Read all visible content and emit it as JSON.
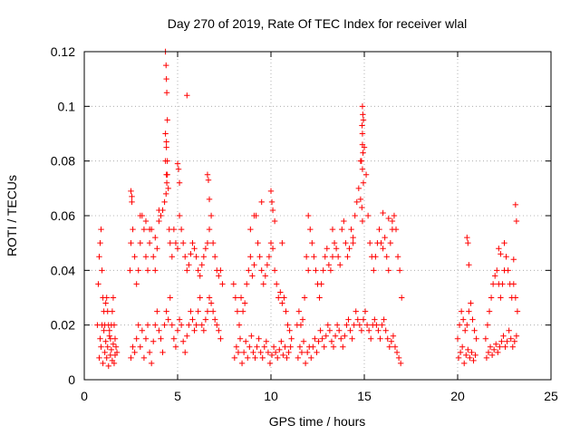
{
  "chart_data": {
    "type": "scatter",
    "title": "Day 270 of 2019, Rate Of TEC Index for receiver wlal",
    "xlabel": "GPS time / hours",
    "ylabel": "ROTI / TECUs",
    "xlim": [
      0,
      25
    ],
    "ylim": [
      0,
      0.12
    ],
    "x_ticks": [
      0,
      5,
      10,
      15,
      20,
      25
    ],
    "x_tick_labels": [
      "0",
      "5",
      "10",
      "15",
      "20",
      "25"
    ],
    "y_ticks": [
      0,
      0.02,
      0.04,
      0.06,
      0.08,
      0.1,
      0.12
    ],
    "y_tick_labels": [
      "0",
      "0.02",
      "0.04",
      "0.06",
      "0.08",
      "0.1",
      "0.12"
    ],
    "grid": true,
    "marker": "+",
    "color": "#ff0000",
    "series": [
      {
        "name": "ROTI",
        "x": [
          0.7,
          0.75,
          0.8,
          0.85,
          0.9,
          0.95,
          1.0,
          1.05,
          1.1,
          1.15,
          1.2,
          1.25,
          1.3,
          1.35,
          1.4,
          1.45,
          1.5,
          1.55,
          1.6,
          1.65,
          1.7,
          1.75,
          0.8,
          0.9,
          1.0,
          1.1,
          1.2,
          1.3,
          1.4,
          1.5,
          1.6,
          0.85,
          0.95,
          1.05,
          1.15,
          1.25,
          1.35,
          1.45,
          1.55,
          1.65,
          2.45,
          2.5,
          2.55,
          2.6,
          2.7,
          2.8,
          2.9,
          3.0,
          3.1,
          3.2,
          3.3,
          3.4,
          3.5,
          3.6,
          3.7,
          3.8,
          3.9,
          4.0,
          4.1,
          4.2,
          4.3,
          4.35,
          4.4,
          4.45,
          4.5,
          4.55,
          4.6,
          4.7,
          4.8,
          4.9,
          5.0,
          5.1,
          5.2,
          5.3,
          5.4,
          5.5,
          5.6,
          5.7,
          5.8,
          5.9,
          6.0,
          6.1,
          6.2,
          6.3,
          6.4,
          6.5,
          6.6,
          6.7,
          6.8,
          6.9,
          7.0,
          7.1,
          7.2,
          7.3,
          7.4,
          2.5,
          2.6,
          2.7,
          2.8,
          2.9,
          3.0,
          3.1,
          3.2,
          3.3,
          3.4,
          3.5,
          3.6,
          3.7,
          3.8,
          3.9,
          4.0,
          4.1,
          4.2,
          4.3,
          4.4,
          4.5,
          4.6,
          4.7,
          4.8,
          4.9,
          5.0,
          5.1,
          5.2,
          5.3,
          5.4,
          5.5,
          5.6,
          5.7,
          5.8,
          5.9,
          6.0,
          6.1,
          6.2,
          6.3,
          6.4,
          6.5,
          6.6,
          6.7,
          6.8,
          6.9,
          7.0,
          7.1,
          7.2,
          7.3,
          4.35,
          4.38,
          4.4,
          4.42,
          4.45,
          4.35,
          4.4,
          4.45,
          4.4,
          4.42,
          4.38,
          5.0,
          5.05,
          5.1,
          5.5,
          6.6,
          6.65,
          6.7,
          2.5,
          2.55,
          3.0,
          3.3,
          3.5,
          3.8,
          4.0,
          8.0,
          8.1,
          8.2,
          8.3,
          8.4,
          8.5,
          8.6,
          8.7,
          8.8,
          8.9,
          9.0,
          9.1,
          9.2,
          9.3,
          9.4,
          9.5,
          9.6,
          9.7,
          9.8,
          9.9,
          10.0,
          10.1,
          10.2,
          10.3,
          10.4,
          10.5,
          10.6,
          10.7,
          10.8,
          10.9,
          11.0,
          11.1,
          8.05,
          8.15,
          8.25,
          8.35,
          8.45,
          8.55,
          8.65,
          8.75,
          8.85,
          8.95,
          9.05,
          9.15,
          9.25,
          9.35,
          9.45,
          9.55,
          9.65,
          9.75,
          9.85,
          9.95,
          10.05,
          10.15,
          10.25,
          10.35,
          10.45,
          10.55,
          10.65,
          10.75,
          10.85,
          10.95,
          11.05,
          10.0,
          10.05,
          10.1,
          10.2,
          9.1,
          9.5,
          8.9,
          10.6,
          11.4,
          11.5,
          11.6,
          11.7,
          11.8,
          11.9,
          12.0,
          12.1,
          12.2,
          12.3,
          12.4,
          12.5,
          12.6,
          12.7,
          12.8,
          12.9,
          13.0,
          13.1,
          13.2,
          13.3,
          13.4,
          13.5,
          13.6,
          13.7,
          13.8,
          13.9,
          14.0,
          14.1,
          14.2,
          14.3,
          14.4,
          14.5,
          14.6,
          14.7,
          14.8,
          14.9,
          15.0,
          15.1,
          15.2,
          15.3,
          15.4,
          15.5,
          15.6,
          15.7,
          15.8,
          15.9,
          16.0,
          16.1,
          16.2,
          16.3,
          16.4,
          16.5,
          16.6,
          16.7,
          16.8,
          16.9,
          17.0,
          11.45,
          11.55,
          11.65,
          11.75,
          11.85,
          11.95,
          12.05,
          12.15,
          12.25,
          12.35,
          12.45,
          12.55,
          12.65,
          12.75,
          12.85,
          12.95,
          13.05,
          13.15,
          13.25,
          13.35,
          13.45,
          13.55,
          13.65,
          13.75,
          13.85,
          13.95,
          14.05,
          14.15,
          14.25,
          14.35,
          14.45,
          14.55,
          14.65,
          14.75,
          14.85,
          14.95,
          15.05,
          15.15,
          15.25,
          15.35,
          15.45,
          15.55,
          15.65,
          15.75,
          15.85,
          15.95,
          16.05,
          16.15,
          16.25,
          16.35,
          16.45,
          16.55,
          16.65,
          16.75,
          16.85,
          16.95,
          14.9,
          14.92,
          14.95,
          14.88,
          14.9,
          14.93,
          14.85,
          14.9,
          14.95,
          14.8,
          14.87,
          14.9,
          12.0,
          13.3,
          16.0,
          16.3,
          16.5,
          14.4,
          20.0,
          20.1,
          20.2,
          20.3,
          20.4,
          20.5,
          20.6,
          20.7,
          20.8,
          20.9,
          21.0,
          20.05,
          20.15,
          20.25,
          20.35,
          20.45,
          20.55,
          20.65,
          20.75,
          20.85,
          20.95,
          20.5,
          20.55,
          20.6,
          21.5,
          21.6,
          21.7,
          21.8,
          21.9,
          22.0,
          22.1,
          22.2,
          22.3,
          22.4,
          22.5,
          22.6,
          22.7,
          22.8,
          22.9,
          23.0,
          23.1,
          23.2,
          21.55,
          21.65,
          21.75,
          21.85,
          21.95,
          22.05,
          22.15,
          22.25,
          22.35,
          22.45,
          22.55,
          22.65,
          22.75,
          22.85,
          22.95,
          23.05,
          23.15,
          22.2,
          22.3,
          22.5,
          23.0,
          23.1,
          23.15
        ],
        "y": [
          0.02,
          0.035,
          0.045,
          0.05,
          0.055,
          0.04,
          0.03,
          0.025,
          0.02,
          0.028,
          0.03,
          0.025,
          0.02,
          0.018,
          0.015,
          0.02,
          0.025,
          0.03,
          0.02,
          0.015,
          0.012,
          0.01,
          0.008,
          0.012,
          0.006,
          0.01,
          0.008,
          0.005,
          0.009,
          0.007,
          0.006,
          0.015,
          0.02,
          0.018,
          0.014,
          0.012,
          0.016,
          0.011,
          0.013,
          0.009,
          0.04,
          0.05,
          0.065,
          0.055,
          0.045,
          0.035,
          0.04,
          0.05,
          0.06,
          0.055,
          0.045,
          0.04,
          0.05,
          0.055,
          0.045,
          0.04,
          0.048,
          0.058,
          0.06,
          0.062,
          0.065,
          0.08,
          0.085,
          0.075,
          0.07,
          0.055,
          0.05,
          0.045,
          0.055,
          0.05,
          0.048,
          0.06,
          0.055,
          0.05,
          0.045,
          0.04,
          0.042,
          0.046,
          0.05,
          0.048,
          0.045,
          0.04,
          0.038,
          0.042,
          0.045,
          0.048,
          0.05,
          0.055,
          0.06,
          0.05,
          0.045,
          0.04,
          0.038,
          0.04,
          0.035,
          0.008,
          0.012,
          0.01,
          0.015,
          0.02,
          0.012,
          0.018,
          0.008,
          0.015,
          0.02,
          0.01,
          0.006,
          0.014,
          0.02,
          0.025,
          0.018,
          0.015,
          0.01,
          0.02,
          0.025,
          0.022,
          0.03,
          0.02,
          0.015,
          0.012,
          0.018,
          0.022,
          0.02,
          0.014,
          0.01,
          0.016,
          0.02,
          0.025,
          0.022,
          0.018,
          0.02,
          0.025,
          0.03,
          0.02,
          0.018,
          0.022,
          0.025,
          0.03,
          0.028,
          0.025,
          0.022,
          0.02,
          0.018,
          0.015,
          0.12,
          0.115,
          0.11,
          0.105,
          0.095,
          0.09,
          0.087,
          0.08,
          0.075,
          0.072,
          0.068,
          0.079,
          0.077,
          0.072,
          0.104,
          0.075,
          0.073,
          0.066,
          0.069,
          0.067,
          0.06,
          0.058,
          0.055,
          0.052,
          0.062,
          0.035,
          0.03,
          0.025,
          0.02,
          0.03,
          0.025,
          0.028,
          0.035,
          0.04,
          0.045,
          0.038,
          0.042,
          0.06,
          0.05,
          0.045,
          0.04,
          0.035,
          0.038,
          0.042,
          0.045,
          0.05,
          0.048,
          0.04,
          0.035,
          0.03,
          0.032,
          0.028,
          0.03,
          0.025,
          0.02,
          0.018,
          0.015,
          0.008,
          0.012,
          0.01,
          0.015,
          0.006,
          0.01,
          0.014,
          0.008,
          0.012,
          0.016,
          0.01,
          0.008,
          0.012,
          0.015,
          0.01,
          0.008,
          0.012,
          0.014,
          0.01,
          0.006,
          0.009,
          0.012,
          0.01,
          0.008,
          0.011,
          0.014,
          0.009,
          0.012,
          0.008,
          0.01,
          0.012,
          0.069,
          0.065,
          0.062,
          0.058,
          0.06,
          0.065,
          0.055,
          0.05,
          0.02,
          0.025,
          0.02,
          0.022,
          0.03,
          0.045,
          0.04,
          0.055,
          0.05,
          0.045,
          0.04,
          0.035,
          0.03,
          0.035,
          0.04,
          0.045,
          0.048,
          0.042,
          0.04,
          0.045,
          0.05,
          0.048,
          0.045,
          0.042,
          0.055,
          0.058,
          0.05,
          0.045,
          0.048,
          0.055,
          0.05,
          0.06,
          0.065,
          0.07,
          0.08,
          0.09,
          0.085,
          0.075,
          0.06,
          0.05,
          0.045,
          0.04,
          0.045,
          0.05,
          0.055,
          0.05,
          0.048,
          0.052,
          0.045,
          0.04,
          0.05,
          0.058,
          0.06,
          0.055,
          0.045,
          0.04,
          0.03,
          0.008,
          0.012,
          0.01,
          0.014,
          0.006,
          0.01,
          0.012,
          0.008,
          0.012,
          0.015,
          0.01,
          0.014,
          0.018,
          0.015,
          0.012,
          0.016,
          0.02,
          0.018,
          0.014,
          0.012,
          0.016,
          0.02,
          0.018,
          0.015,
          0.012,
          0.016,
          0.02,
          0.022,
          0.018,
          0.015,
          0.02,
          0.025,
          0.022,
          0.02,
          0.018,
          0.022,
          0.025,
          0.02,
          0.018,
          0.015,
          0.02,
          0.022,
          0.02,
          0.018,
          0.015,
          0.02,
          0.022,
          0.018,
          0.015,
          0.012,
          0.014,
          0.016,
          0.012,
          0.01,
          0.008,
          0.006,
          0.1,
          0.097,
          0.095,
          0.093,
          0.086,
          0.083,
          0.08,
          0.077,
          0.072,
          0.066,
          0.063,
          0.058,
          0.06,
          0.055,
          0.061,
          0.059,
          0.055,
          0.052,
          0.015,
          0.02,
          0.025,
          0.022,
          0.018,
          0.02,
          0.025,
          0.028,
          0.022,
          0.018,
          0.015,
          0.008,
          0.01,
          0.012,
          0.006,
          0.009,
          0.011,
          0.008,
          0.01,
          0.007,
          0.009,
          0.052,
          0.05,
          0.042,
          0.015,
          0.02,
          0.025,
          0.03,
          0.035,
          0.038,
          0.04,
          0.035,
          0.03,
          0.035,
          0.04,
          0.045,
          0.04,
          0.035,
          0.03,
          0.035,
          0.03,
          0.025,
          0.008,
          0.01,
          0.012,
          0.009,
          0.011,
          0.013,
          0.01,
          0.012,
          0.014,
          0.016,
          0.012,
          0.014,
          0.018,
          0.015,
          0.012,
          0.014,
          0.016,
          0.048,
          0.046,
          0.05,
          0.044,
          0.064,
          0.058
        ]
      }
    ]
  }
}
